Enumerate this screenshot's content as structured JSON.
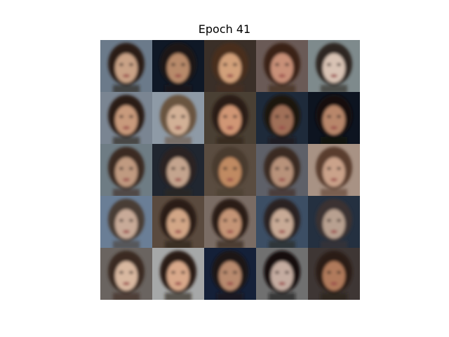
{
  "figure": {
    "title": "Epoch 41"
  },
  "grid": {
    "rows": 5,
    "cols": 5,
    "tiles": [
      {
        "bg": "#6b7a8a",
        "hair": "#2a1e18",
        "skin": "#c9a286"
      },
      {
        "bg": "#0f1826",
        "hair": "#1a1512",
        "skin": "#b88a6a"
      },
      {
        "bg": "#3a2f28",
        "hair": "#4a2e1c",
        "skin": "#d2a07a"
      },
      {
        "bg": "#6a5a56",
        "hair": "#3b2418",
        "skin": "#c89078"
      },
      {
        "bg": "#7e8a8c",
        "hair": "#2e2622",
        "skin": "#d8c2b4"
      },
      {
        "bg": "#7a8592",
        "hair": "#2a1a14",
        "skin": "#c89a7c"
      },
      {
        "bg": "#8e9aa6",
        "hair": "#6a5440",
        "skin": "#d2b096"
      },
      {
        "bg": "#4a4034",
        "hair": "#2c1c12",
        "skin": "#d09674"
      },
      {
        "bg": "#1e2a3a",
        "hair": "#1a1210",
        "skin": "#a07058"
      },
      {
        "bg": "#0d1420",
        "hair": "#120c0a",
        "skin": "#b8866a"
      },
      {
        "bg": "#6e7c84",
        "hair": "#3a2a20",
        "skin": "#c09a80"
      },
      {
        "bg": "#202630",
        "hair": "#2c2420",
        "skin": "#c4a48e"
      },
      {
        "bg": "#5a4c40",
        "hair": "#4a3a2e",
        "skin": "#c08a62"
      },
      {
        "bg": "#5e6068",
        "hair": "#3a2a22",
        "skin": "#b8927a"
      },
      {
        "bg": "#a89284",
        "hair": "#5a3e2e",
        "skin": "#caa28a"
      },
      {
        "bg": "#6a7e96",
        "hair": "#4a3c34",
        "skin": "#c8aa98"
      },
      {
        "bg": "#5a4a3e",
        "hair": "#2a1a12",
        "skin": "#d2a686"
      },
      {
        "bg": "#7a6c64",
        "hair": "#2c1c14",
        "skin": "#c49476"
      },
      {
        "bg": "#3c4e64",
        "hair": "#2a2422",
        "skin": "#c8aa96"
      },
      {
        "bg": "#243040",
        "hair": "#3a3030",
        "skin": "#b8a090"
      },
      {
        "bg": "#6a6460",
        "hair": "#3a2a20",
        "skin": "#d8b8a0"
      },
      {
        "bg": "#a6a8a8",
        "hair": "#2a1c16",
        "skin": "#d8a88a"
      },
      {
        "bg": "#142038",
        "hair": "#1a1616",
        "skin": "#b88a6e"
      },
      {
        "bg": "#707070",
        "hair": "#141010",
        "skin": "#c4aca0"
      },
      {
        "bg": "#3e3634",
        "hair": "#2a1a14",
        "skin": "#b07a5c"
      }
    ]
  }
}
